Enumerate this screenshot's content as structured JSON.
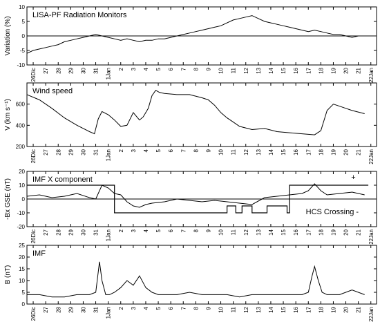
{
  "figure": {
    "x_tick_labels": [
      "26Dic",
      "27",
      "28",
      "29",
      "30",
      "31",
      "1Jan",
      "2",
      "3",
      "4",
      "5",
      "6",
      "7",
      "8",
      "9",
      "10",
      "11",
      "12",
      "13",
      "14",
      "15",
      "16",
      "17",
      "18",
      "19",
      "20",
      "21",
      "22Jan"
    ]
  },
  "chart_data": [
    {
      "type": "line",
      "title": "LISA-PF Radiation Monitors",
      "ylabel": "Variation (%)",
      "xlabel": "",
      "x_unit": "days since 26 Dic",
      "xlim": [
        0,
        27.3
      ],
      "ylim": [
        -10,
        10
      ],
      "yticks": [
        -10,
        -5,
        0,
        5,
        10
      ],
      "reference_line": 0,
      "series": [
        {
          "x": [
            0,
            0.5,
            1,
            1.5,
            2,
            2.5,
            3,
            3.5,
            4,
            4.5,
            5,
            5.5,
            6,
            6.5,
            7,
            7.5,
            8,
            8.5,
            9,
            9.5,
            10,
            10.5,
            11,
            11.5,
            12,
            12.5,
            13,
            13.5,
            14,
            14.5,
            15,
            15.5,
            16,
            16.5,
            17,
            17.5,
            18,
            18.5,
            19,
            19.5,
            20,
            20.5,
            21,
            21.5,
            22,
            22.5,
            23,
            23.5,
            24,
            24.5,
            25,
            25.5,
            26,
            26.5
          ],
          "values": [
            -6,
            -5,
            -4.5,
            -4,
            -3.5,
            -3,
            -2,
            -1.5,
            -1,
            -0.5,
            0,
            0.5,
            0,
            -0.5,
            -1,
            -1.5,
            -1,
            -1.5,
            -2,
            -1.5,
            -1.5,
            -1,
            -1,
            -0.5,
            0,
            0.5,
            1,
            1.5,
            2,
            2.5,
            3,
            3.5,
            4.5,
            5.5,
            6,
            6.5,
            7,
            6,
            5,
            4.5,
            4,
            3.5,
            3,
            2.5,
            2,
            1.5,
            2,
            1.5,
            1,
            0.5,
            0.5,
            0,
            -0.5,
            0
          ]
        }
      ]
    },
    {
      "type": "line",
      "title": "Wind speed",
      "ylabel": "V (km s⁻¹)",
      "xlabel": "",
      "x_unit": "days since 26 Dic",
      "xlim": [
        0,
        27.3
      ],
      "ylim": [
        200,
        800
      ],
      "yticks": [
        200,
        400,
        600
      ],
      "series": [
        {
          "x": [
            0,
            1,
            2,
            3,
            4,
            5,
            5.4,
            5.7,
            6,
            6.5,
            7,
            7.5,
            8,
            8.5,
            9,
            9.3,
            9.7,
            10,
            10.3,
            10.6,
            11,
            12,
            13,
            14,
            14.5,
            15,
            15.5,
            16,
            16.5,
            17,
            18,
            19,
            20,
            21,
            22,
            23,
            23.5,
            24,
            24.5,
            25,
            25.5,
            26,
            27
          ],
          "values": [
            690,
            640,
            560,
            470,
            400,
            340,
            320,
            460,
            530,
            500,
            450,
            390,
            400,
            520,
            450,
            480,
            560,
            680,
            730,
            710,
            700,
            690,
            690,
            660,
            640,
            590,
            520,
            470,
            430,
            390,
            360,
            370,
            340,
            330,
            320,
            310,
            350,
            540,
            600,
            580,
            560,
            540,
            510
          ]
        }
      ]
    },
    {
      "type": "line",
      "title": "IMF X component",
      "ylabel": "-Bx GSE (nT)",
      "xlabel": "",
      "x_unit": "days since 26 Dic",
      "xlim": [
        0,
        27.3
      ],
      "ylim": [
        -20,
        20
      ],
      "yticks": [
        -20,
        -10,
        0,
        10,
        20
      ],
      "reference_line": 0,
      "annotations": [
        {
          "text": "+",
          "x": 26.1,
          "y": 14
        },
        {
          "text": "HCS Crossing -",
          "x": 22.3,
          "y": -11
        }
      ],
      "series": [
        {
          "name": "-Bx",
          "x": [
            0,
            1,
            2,
            3,
            4,
            5,
            5.5,
            6,
            6.5,
            7,
            7.5,
            8,
            8.5,
            9,
            9.5,
            10,
            11,
            12,
            13,
            14,
            15,
            16,
            17,
            18,
            19,
            20,
            21,
            22,
            22.5,
            23,
            23.5,
            24,
            25,
            26,
            27
          ],
          "values": [
            2,
            3,
            1,
            2,
            4,
            1,
            0,
            10,
            8,
            4,
            3,
            -2,
            -5,
            -6,
            -4,
            -3,
            -2,
            0,
            -1,
            -2,
            -1,
            -2,
            -3,
            -4,
            1,
            2,
            3,
            4,
            6,
            11,
            6,
            3,
            4,
            5,
            3
          ]
        },
        {
          "name": "HCS Crossing",
          "kind": "step",
          "x": [
            0,
            7,
            7,
            16,
            16,
            16.7,
            16.7,
            17.2,
            17.2,
            18,
            18,
            19.2,
            19.2,
            20.8,
            20.8,
            21,
            21,
            27.3
          ],
          "values": [
            10,
            10,
            -10,
            -10,
            -5,
            -5,
            -10,
            -10,
            -5,
            -5,
            -10,
            -10,
            -5,
            -5,
            -10,
            -10,
            10,
            10
          ]
        }
      ]
    },
    {
      "type": "line",
      "title": "IMF",
      "ylabel": "B (nT)",
      "xlabel": "",
      "x_unit": "days since 26 Dic",
      "xlim": [
        0,
        27.3
      ],
      "ylim": [
        0,
        25
      ],
      "yticks": [
        0,
        5,
        10,
        15,
        20,
        25
      ],
      "series": [
        {
          "x": [
            0,
            1,
            2,
            3,
            4,
            5,
            5.5,
            5.8,
            6,
            6.3,
            6.6,
            7,
            7.5,
            8,
            8.5,
            9,
            9.5,
            10,
            10.5,
            11,
            12,
            13,
            14,
            15,
            16,
            17,
            18,
            19,
            20,
            21,
            22,
            22.5,
            22.8,
            23,
            23.3,
            23.6,
            24,
            25,
            26,
            27
          ],
          "values": [
            4,
            4,
            3,
            3,
            4,
            4,
            5,
            18,
            10,
            4,
            4,
            5,
            7,
            10,
            8,
            12,
            7,
            5,
            4,
            4,
            4,
            5,
            4,
            4,
            4,
            3,
            4,
            4,
            4,
            4,
            4,
            5,
            12,
            16,
            10,
            5,
            4,
            4,
            6,
            4
          ]
        }
      ]
    }
  ]
}
